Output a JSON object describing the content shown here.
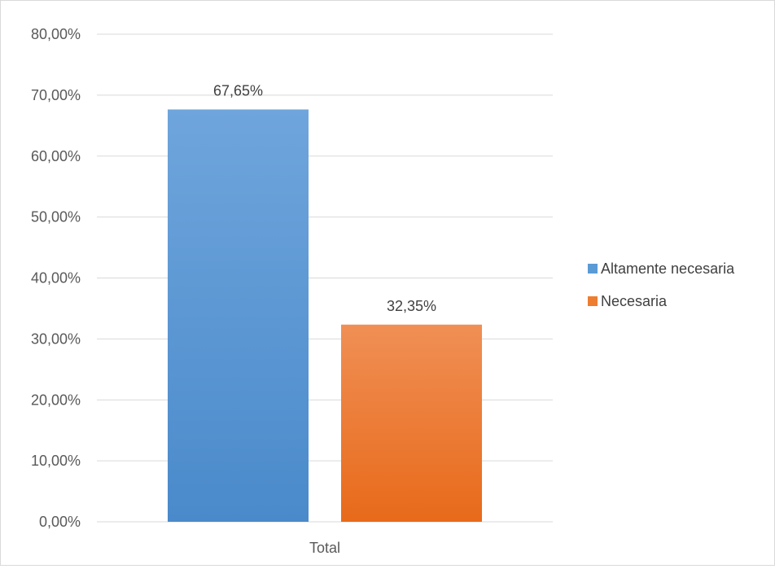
{
  "chart_data": {
    "type": "bar",
    "categories": [
      "Total"
    ],
    "series": [
      {
        "name": "Altamente necesaria",
        "values": [
          67.65
        ],
        "label": "67,65%",
        "color": "#5b9bd5"
      },
      {
        "name": "Necesaria",
        "values": [
          32.35
        ],
        "label": "32,35%",
        "color": "#ed7d31"
      }
    ],
    "ylim": [
      0,
      80
    ],
    "yticks": [
      0,
      10,
      20,
      30,
      40,
      50,
      60,
      70,
      80
    ],
    "ytick_labels": [
      "0,00%",
      "10,00%",
      "20,00%",
      "30,00%",
      "40,00%",
      "50,00%",
      "60,00%",
      "70,00%",
      "80,00%"
    ],
    "grid": true,
    "legend_position": "right"
  }
}
